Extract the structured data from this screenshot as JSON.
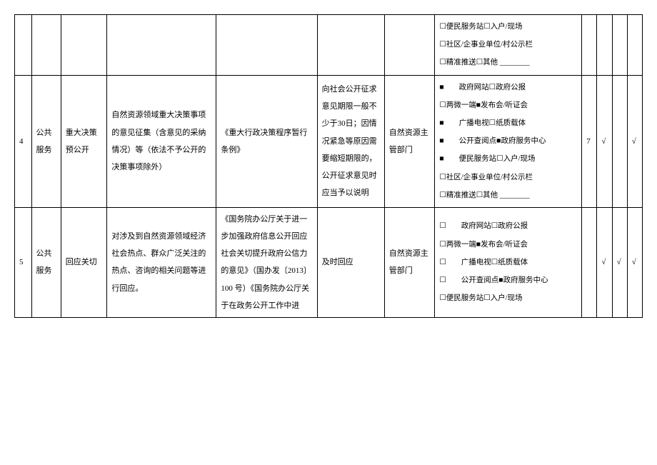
{
  "table": {
    "prevRow": {
      "methods": [
        "☐便民服务站☐入户/现场",
        "☐社区/企事业单位/村公示栏",
        "☐精准推送☐其他 ________"
      ]
    },
    "row4": {
      "num": "4",
      "category": "公共服务",
      "subcategory": "重大决策预公开",
      "content": "自然资源领域重大决策事项的意见征集（含意见的采纳情况）等（依法不予公开的决策事项除外）",
      "basis": "《重大行政决策程序暂行条例》",
      "timing": "向社会公开征求意见期限一般不少于30日；因情况紧急等原因需要缩短期限的，公开征求意见时应当予以说明",
      "dept": "自然资源主管部门",
      "methods": [
        "■　　政府网站☐政府公报",
        "☐两微一端■发布会/听证会",
        "■　　广播电视☐纸质载体",
        "■　　公开查阅点■政府服务中心",
        "■　　便民服务站☐入户/现场",
        "☐社区/企事业单位/村公示栏",
        "☐精准推送☐其他 ________"
      ],
      "numCol": "7",
      "check1": "√",
      "check2": "",
      "check3": "√"
    },
    "row5": {
      "num": "5",
      "category": "公共服务",
      "subcategory": "回应关切",
      "content": "对涉及到自然资源领域经济社会热点、群众广泛关注的热点、咨询的相关问题等进行回应。",
      "basis": "《国务院办公厅关于进一步加强政府信息公开回应社会关切提升政府公信力的意见》（国办发〔2013〕100 号）《国务院办公厅关于在政务公开工作中进",
      "timing": "及时回应",
      "dept": "自然资源主管部门",
      "methods": [
        "☐　　政府网站☐政府公报",
        "☐两微一端■发布会/听证会",
        "☐　　广播电视☐纸质载体",
        "☐　　公开查阅点■政府服务中心",
        "☐便民服务站☐入户/现场"
      ],
      "numCol": "",
      "check1": "√",
      "check2": "√",
      "check3": "√"
    }
  }
}
